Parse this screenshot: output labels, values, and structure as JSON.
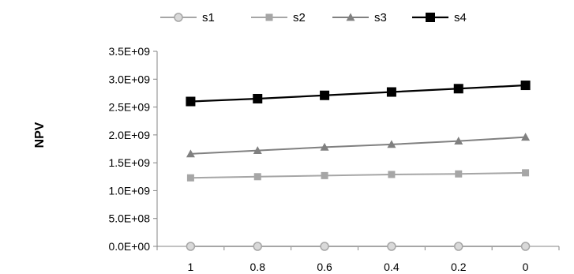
{
  "chart_data": {
    "type": "line",
    "categories": [
      "1",
      "0.8",
      "0.6",
      "0.4",
      "0.2",
      "0"
    ],
    "ylabel": "NPV",
    "xlabel": "",
    "ylim": [
      0,
      3500000000
    ],
    "yticks": [
      "0.0E+00",
      "5.0E+08",
      "1.0E+09",
      "1.5E+09",
      "2.0E+09",
      "2.5E+09",
      "3.0E+09",
      "3.5E+09"
    ],
    "ytick_values": [
      0,
      500000000,
      1000000000,
      1500000000,
      2000000000,
      2500000000,
      3000000000,
      3500000000
    ],
    "legend_position": "top",
    "grid": false,
    "series": [
      {
        "name": "s1",
        "marker": "circle",
        "color": "#a6a6a6",
        "values": [
          0,
          0,
          0,
          0,
          0,
          0
        ]
      },
      {
        "name": "s2",
        "marker": "square",
        "color": "#a6a6a6",
        "values": [
          1230000000,
          1250000000,
          1270000000,
          1290000000,
          1300000000,
          1320000000
        ]
      },
      {
        "name": "s3",
        "marker": "triangle",
        "color": "#808080",
        "values": [
          1660000000,
          1720000000,
          1780000000,
          1830000000,
          1890000000,
          1960000000
        ]
      },
      {
        "name": "s4",
        "marker": "square",
        "color": "#000000",
        "values": [
          2600000000,
          2650000000,
          2710000000,
          2770000000,
          2830000000,
          2890000000
        ]
      }
    ]
  }
}
